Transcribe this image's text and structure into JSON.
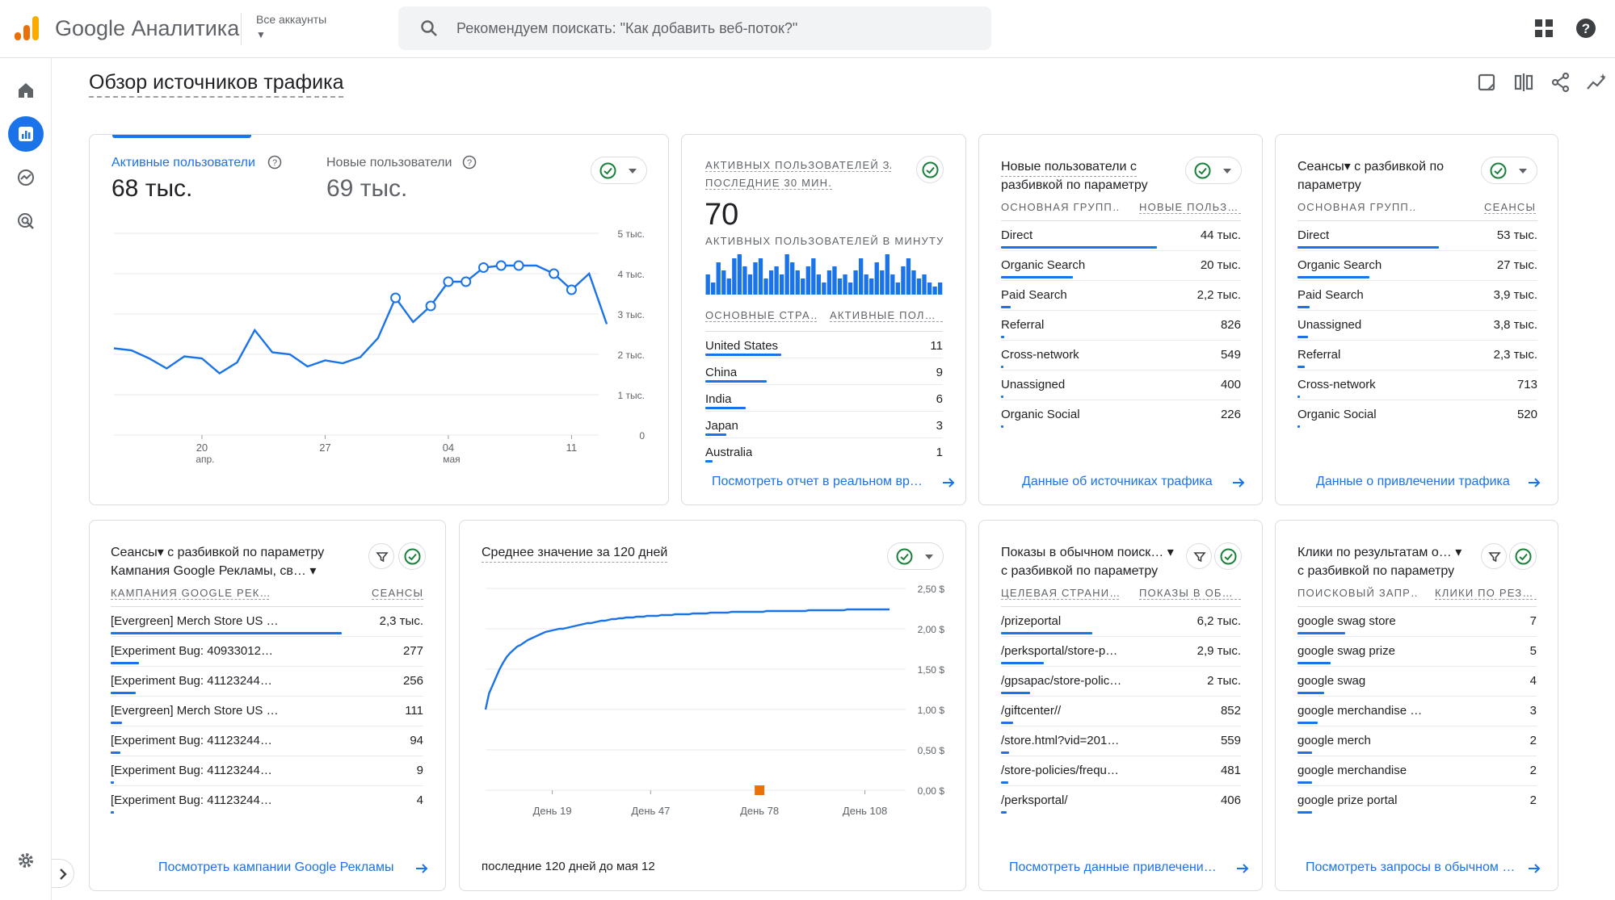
{
  "app": {
    "title": "Google Аналитика",
    "accounts_label": "Все аккаунты"
  },
  "search": {
    "placeholder": "Рекомендуем поискать: \"Как добавить веб-поток?\""
  },
  "page": {
    "title": "Обзор источников трафика"
  },
  "colors": {
    "accent": "#1a73e8",
    "green": "#188038",
    "orange": "#e8710a"
  },
  "nav": {
    "items": [
      "home-icon",
      "reports-icon",
      "explore-icon",
      "advertising-icon"
    ],
    "settings": "gear-icon"
  },
  "card1": {
    "metric1_label": "Активные пользователи",
    "metric1_value": "68 тыс.",
    "metric2_label": "Новые пользователи",
    "metric2_value": "69 тыс."
  },
  "card2": {
    "title_line1": "АКТИВНЫХ ПОЛЬЗОВАТЕЛЕЙ ЗА",
    "title_line2": "ПОСЛЕДНИЕ 30 МИН.",
    "value": "70",
    "subtitle": "АКТИВНЫХ ПОЛЬЗОВАТЕЛЕЙ В МИНУТУ",
    "col1": "ОСНОВНЫЕ СТРА…",
    "col2": "АКТИВНЫЕ ПОЛ…",
    "rows": [
      {
        "label": "United States",
        "value": "11",
        "pct": 0.32
      },
      {
        "label": "China",
        "value": "9",
        "pct": 0.26
      },
      {
        "label": "India",
        "value": "6",
        "pct": 0.17
      },
      {
        "label": "Japan",
        "value": "3",
        "pct": 0.09
      },
      {
        "label": "Australia",
        "value": "1",
        "pct": 0.03
      }
    ],
    "link": "Посмотреть отчет в реальном вр…",
    "minute_bars": [
      5,
      3,
      8,
      6,
      4,
      9,
      10,
      7,
      5,
      8,
      9,
      4,
      6,
      7,
      5,
      10,
      8,
      6,
      4,
      7,
      9,
      5,
      3,
      6,
      7,
      4,
      5,
      3,
      6,
      9,
      5,
      4,
      8,
      6,
      10,
      5,
      3,
      7,
      9,
      6,
      4,
      5,
      3,
      2,
      3
    ]
  },
  "card3": {
    "title_line1": "Новые пользователи с",
    "title_line2": "разбивкой по параметру",
    "col1": "ОСНОВНАЯ ГРУПП…",
    "col2": "НОВЫЕ ПОЛЬЗ…",
    "rows": [
      {
        "label": "Direct",
        "value": "44 тыс.",
        "pct": 0.65
      },
      {
        "label": "Organic Search",
        "value": "20 тыс.",
        "pct": 0.3
      },
      {
        "label": "Paid Search",
        "value": "2,2 тыс.",
        "pct": 0.04
      },
      {
        "label": "Referral",
        "value": "826",
        "pct": 0.015
      },
      {
        "label": "Cross-network",
        "value": "549",
        "pct": 0.01
      },
      {
        "label": "Unassigned",
        "value": "400",
        "pct": 0.008
      },
      {
        "label": "Organic Social",
        "value": "226",
        "pct": 0.005
      }
    ],
    "link": "Данные об источниках трафика"
  },
  "card4": {
    "title_line1": "Сеансы▾ с разбивкой по",
    "title_line2": "параметру",
    "col1": "ОСНОВНАЯ ГРУПП…",
    "col2": "СЕАНСЫ",
    "rows": [
      {
        "label": "Direct",
        "value": "53 тыс.",
        "pct": 0.59
      },
      {
        "label": "Organic Search",
        "value": "27 тыс.",
        "pct": 0.3
      },
      {
        "label": "Paid Search",
        "value": "3,9 тыс.",
        "pct": 0.05
      },
      {
        "label": "Unassigned",
        "value": "3,8 тыс.",
        "pct": 0.045
      },
      {
        "label": "Referral",
        "value": "2,3 тыс.",
        "pct": 0.03
      },
      {
        "label": "Cross-network",
        "value": "713",
        "pct": 0.01
      },
      {
        "label": "Organic Social",
        "value": "520",
        "pct": 0.008
      }
    ],
    "link": "Данные о привлечении трафика"
  },
  "card5": {
    "title_line1": "Сеансы▾ с разбивкой по параметру",
    "title_line2": "Кампания Google Рекламы, св… ▾",
    "col1": "КАМПАНИЯ GOOGLE РЕК…",
    "col2": "СЕАНСЫ",
    "rows": [
      {
        "label": "[Evergreen] Merch Store US …",
        "value": "2,3 тыс.",
        "pct": 0.74
      },
      {
        "label": "[Experiment Bug: 40933012…",
        "value": "277",
        "pct": 0.09
      },
      {
        "label": "[Experiment Bug: 41123244…",
        "value": "256",
        "pct": 0.08
      },
      {
        "label": "[Evergreen] Merch Store US …",
        "value": "111",
        "pct": 0.035
      },
      {
        "label": "[Experiment Bug: 41123244…",
        "value": "94",
        "pct": 0.03
      },
      {
        "label": "[Experiment Bug: 41123244…",
        "value": "9",
        "pct": 0.005
      },
      {
        "label": "[Experiment Bug: 41123244…",
        "value": "4",
        "pct": 0.003
      }
    ],
    "link": "Посмотреть кампании Google Рекламы"
  },
  "card6": {
    "title": "Среднее значение за 120 дней",
    "footer": "последние 120 дней до мая 12"
  },
  "card7": {
    "title_line1": "Показы в обычном поиск… ▾",
    "title_line2": "с разбивкой по параметру",
    "col1": "ЦЕЛЕВАЯ СТРАНИ…",
    "col2": "ПОКАЗЫ В ОБ…",
    "rows": [
      {
        "label": "/prizeportal",
        "value": "6,2 тыс.",
        "pct": 0.38
      },
      {
        "label": "/perksportal/store-p…",
        "value": "2,9 тыс.",
        "pct": 0.18
      },
      {
        "label": "/gpsapac/store-polic…",
        "value": "2 тыс.",
        "pct": 0.12
      },
      {
        "label": "/giftcenter//",
        "value": "852",
        "pct": 0.05
      },
      {
        "label": "/store.html?vid=201…",
        "value": "559",
        "pct": 0.035
      },
      {
        "label": "/store-policies/frequ…",
        "value": "481",
        "pct": 0.03
      },
      {
        "label": "/perksportal/",
        "value": "406",
        "pct": 0.025
      }
    ],
    "link": "Посмотреть данные привлечени…"
  },
  "card8": {
    "title_line1": "Клики по результатам о… ▾",
    "title_line2": "с разбивкой по параметру",
    "col1": "ПОИСКОВЫЙ ЗАПР…",
    "col2": "КЛИКИ ПО РЕЗ…",
    "rows": [
      {
        "label": "google swag store",
        "value": "7",
        "pct": 0.2
      },
      {
        "label": "google swag prize",
        "value": "5",
        "pct": 0.14
      },
      {
        "label": "google swag",
        "value": "4",
        "pct": 0.11
      },
      {
        "label": "google merchandise …",
        "value": "3",
        "pct": 0.085
      },
      {
        "label": "google merch",
        "value": "2",
        "pct": 0.06
      },
      {
        "label": "google merchandise",
        "value": "2",
        "pct": 0.06
      },
      {
        "label": "google prize portal",
        "value": "2",
        "pct": 0.06
      }
    ],
    "link": "Посмотреть запросы в обычном …"
  },
  "chart_data": [
    {
      "type": "line",
      "x_ticks": [
        {
          "label": "20",
          "sub": "апр.",
          "index": 5
        },
        {
          "label": "27",
          "index": 12
        },
        {
          "label": "04",
          "sub": "мая",
          "index": 19
        },
        {
          "label": "11",
          "index": 26
        }
      ],
      "y_ticks": [
        "5 тыс.",
        "4 тыс.",
        "3 тыс.",
        "2 тыс.",
        "1 тыс.",
        "0"
      ],
      "ylim": [
        0,
        5000
      ],
      "series": [
        {
          "values": [
            2150,
            2100,
            1900,
            1650,
            1950,
            1900,
            1530,
            1800,
            2600,
            2050,
            2000,
            1700,
            1850,
            1780,
            1930,
            2400,
            3400,
            2800,
            3200,
            3800,
            3800,
            4150,
            4200,
            4200,
            4200,
            4000,
            3600,
            4000,
            2750
          ]
        }
      ]
    },
    {
      "type": "bar",
      "title": "АКТИВНЫХ ПОЛЬЗОВАТЕЛЕЙ В МИНУТУ",
      "values_ref": "card2.minute_bars"
    },
    {
      "type": "line",
      "title": "Среднее значение за 120 дней",
      "x_ticks": [
        {
          "label": "День 19",
          "index": 19
        },
        {
          "label": "День 47",
          "index": 47
        },
        {
          "label": "День 78",
          "index": 78
        },
        {
          "label": "День 108",
          "index": 108
        }
      ],
      "y_ticks": [
        "2,50 $",
        "2,00 $",
        "1,50 $",
        "1,00 $",
        "0,50 $",
        "0,00 $"
      ],
      "ylim": [
        0,
        2.5
      ],
      "series": [
        {
          "values": [
            1.0,
            1.2,
            1.3,
            1.4,
            1.5,
            1.58,
            1.65,
            1.7,
            1.74,
            1.78,
            1.8,
            1.83,
            1.86,
            1.88,
            1.9,
            1.92,
            1.94,
            1.96,
            1.97,
            1.98,
            1.99,
            2.0,
            2.0,
            2.01,
            2.02,
            2.03,
            2.04,
            2.05,
            2.06,
            2.07,
            2.07,
            2.08,
            2.09,
            2.1,
            2.1,
            2.11,
            2.12,
            2.12,
            2.13,
            2.13,
            2.14,
            2.14,
            2.14,
            2.15,
            2.15,
            2.15,
            2.16,
            2.16,
            2.16,
            2.16,
            2.17,
            2.17,
            2.17,
            2.17,
            2.18,
            2.18,
            2.18,
            2.18,
            2.18,
            2.19,
            2.19,
            2.19,
            2.19,
            2.19,
            2.2,
            2.2,
            2.2,
            2.2,
            2.2,
            2.2,
            2.21,
            2.21,
            2.21,
            2.21,
            2.21,
            2.21,
            2.21,
            2.21,
            2.21,
            2.21,
            2.22,
            2.22,
            2.22,
            2.22,
            2.22,
            2.22,
            2.22,
            2.22,
            2.22,
            2.22,
            2.22,
            2.22,
            2.23,
            2.23,
            2.23,
            2.23,
            2.23,
            2.23,
            2.23,
            2.23,
            2.23,
            2.23,
            2.23,
            2.24,
            2.24,
            2.24,
            2.24,
            2.24,
            2.24,
            2.24,
            2.24,
            2.24,
            2.24,
            2.24,
            2.24,
            2.24
          ]
        },
        {
          "name": "",
          "marker_day": 78,
          "marker_value": 0.0
        }
      ]
    }
  ]
}
